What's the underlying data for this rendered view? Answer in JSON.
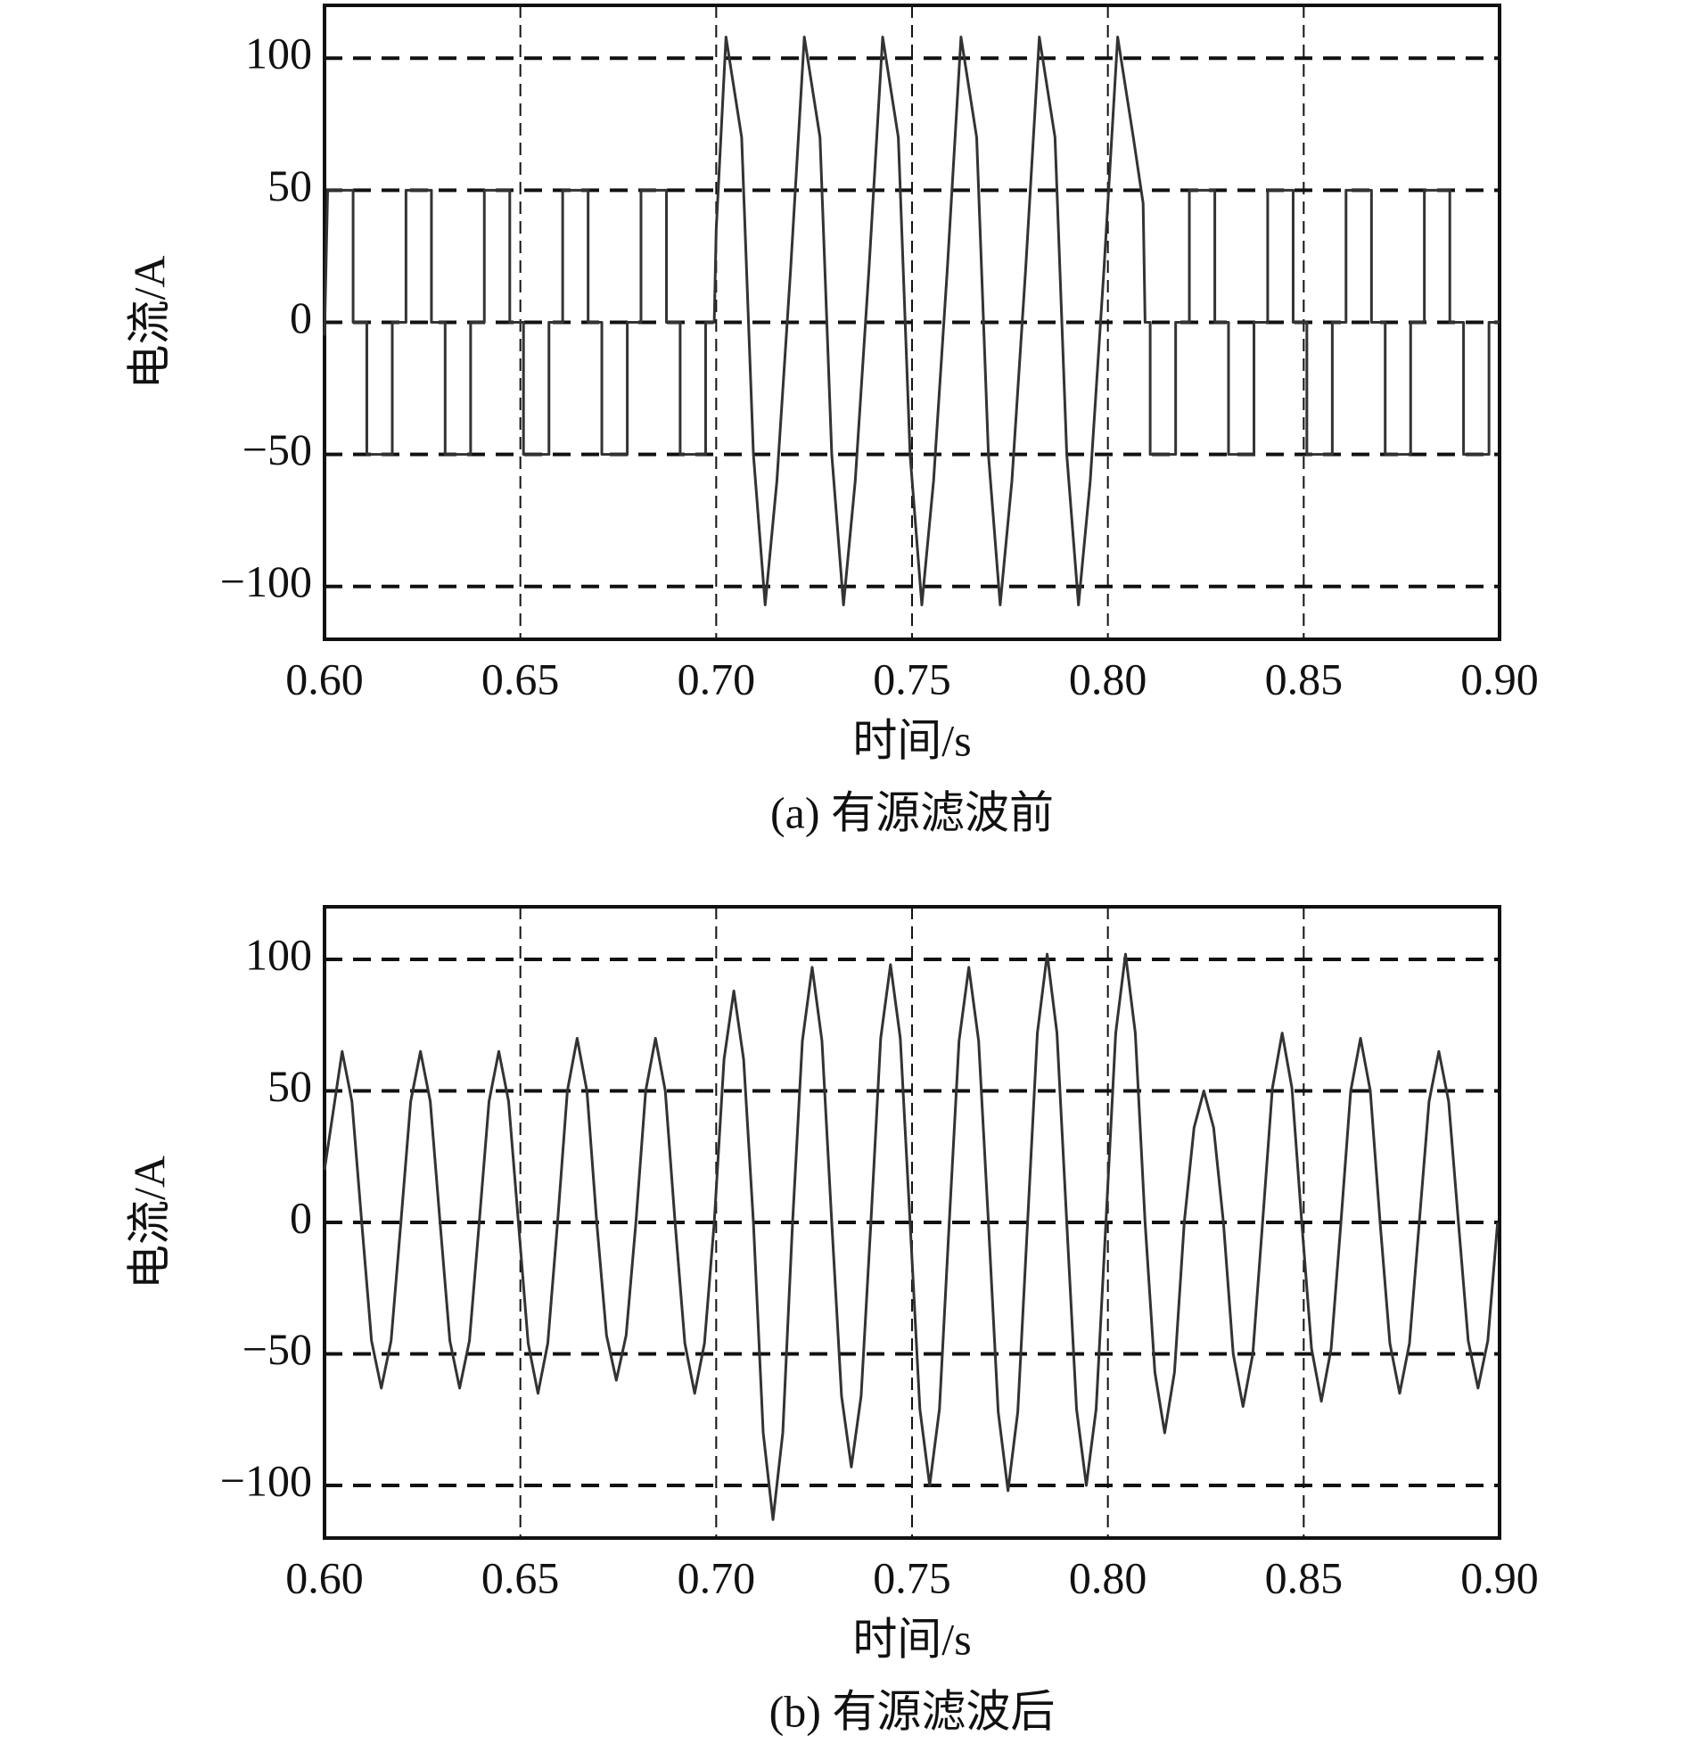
{
  "chart_data": [
    {
      "type": "line",
      "xlabel": "时间/s",
      "ylabel": "电流/A",
      "caption": "(a) 有源滤波前",
      "color": "#333333",
      "grid": true,
      "xlim": [
        0.6,
        0.9
      ],
      "ylim": [
        -120,
        120
      ],
      "xticks": [
        {
          "value": 0.6,
          "label": "0.60"
        },
        {
          "value": 0.65,
          "label": "0.65"
        },
        {
          "value": 0.7,
          "label": "0.70"
        },
        {
          "value": 0.75,
          "label": "0.75"
        },
        {
          "value": 0.8,
          "label": "0.80"
        },
        {
          "value": 0.85,
          "label": "0.85"
        },
        {
          "value": 0.9,
          "label": "0.90"
        }
      ],
      "yticks": [
        {
          "value": -100,
          "label": "−100"
        },
        {
          "value": -50,
          "label": "−50"
        },
        0,
        50,
        100
      ],
      "x": [
        0.6,
        0.6008,
        0.6073,
        0.6073,
        0.6108,
        0.6108,
        0.6173,
        0.6173,
        0.6208,
        0.6208,
        0.6273,
        0.6273,
        0.6308,
        0.6308,
        0.6373,
        0.6373,
        0.6408,
        0.6408,
        0.6473,
        0.6473,
        0.6508,
        0.6508,
        0.6573,
        0.6573,
        0.6608,
        0.6608,
        0.6673,
        0.6673,
        0.6708,
        0.6708,
        0.6773,
        0.6773,
        0.6808,
        0.6808,
        0.6873,
        0.6873,
        0.6908,
        0.6908,
        0.6973,
        0.6973,
        0.6995,
        0.7,
        0.7025,
        0.7065,
        0.7095,
        0.7125,
        0.7155,
        0.719,
        0.7225,
        0.7265,
        0.7295,
        0.7325,
        0.7355,
        0.739,
        0.7425,
        0.7465,
        0.7495,
        0.7525,
        0.7555,
        0.759,
        0.7625,
        0.7665,
        0.7695,
        0.7725,
        0.7755,
        0.779,
        0.7825,
        0.7865,
        0.7895,
        0.7925,
        0.7955,
        0.799,
        0.8025,
        0.8065,
        0.809,
        0.8095,
        0.8108,
        0.8108,
        0.8173,
        0.8173,
        0.8208,
        0.8208,
        0.8273,
        0.8273,
        0.8308,
        0.8308,
        0.8373,
        0.8373,
        0.8408,
        0.8408,
        0.8473,
        0.8473,
        0.8508,
        0.8508,
        0.8573,
        0.8573,
        0.8608,
        0.8608,
        0.8673,
        0.8673,
        0.8708,
        0.8708,
        0.8773,
        0.8773,
        0.8808,
        0.8808,
        0.8873,
        0.8873,
        0.8908,
        0.8908,
        0.8973,
        0.8973,
        0.9
      ],
      "values": [
        -5,
        50,
        50,
        0,
        0,
        -50,
        -50,
        0,
        0,
        50,
        50,
        0,
        0,
        -50,
        -50,
        0,
        0,
        50,
        50,
        0,
        0,
        -50,
        -50,
        0,
        0,
        50,
        50,
        0,
        0,
        -50,
        -50,
        0,
        0,
        50,
        50,
        0,
        0,
        -50,
        -50,
        0,
        0,
        35,
        108,
        70,
        -50,
        -107,
        -60,
        20,
        108,
        70,
        -50,
        -107,
        -60,
        20,
        108,
        70,
        -50,
        -107,
        -60,
        20,
        108,
        70,
        -50,
        -107,
        -60,
        20,
        108,
        70,
        -50,
        -107,
        -60,
        20,
        108,
        70,
        45,
        0,
        0,
        -50,
        -50,
        0,
        0,
        50,
        50,
        0,
        0,
        -50,
        -50,
        0,
        0,
        50,
        50,
        0,
        0,
        -50,
        -50,
        0,
        0,
        50,
        50,
        0,
        0,
        -50,
        -50,
        0,
        0,
        50,
        50,
        0,
        0,
        -50,
        -50,
        0,
        0
      ]
    },
    {
      "type": "line",
      "xlabel": "时间/s",
      "ylabel": "电流/A",
      "caption": "(b) 有源滤波后",
      "color": "#333333",
      "grid": true,
      "xlim": [
        0.6,
        0.9
      ],
      "ylim": [
        -120,
        120
      ],
      "xticks": [
        {
          "value": 0.6,
          "label": "0.60"
        },
        {
          "value": 0.65,
          "label": "0.65"
        },
        {
          "value": 0.7,
          "label": "0.70"
        },
        {
          "value": 0.75,
          "label": "0.75"
        },
        {
          "value": 0.8,
          "label": "0.80"
        },
        {
          "value": 0.85,
          "label": "0.85"
        },
        {
          "value": 0.9,
          "label": "0.90"
        }
      ],
      "yticks": [
        {
          "value": -100,
          "label": "−100"
        },
        {
          "value": -50,
          "label": "−50"
        },
        0,
        50,
        100
      ],
      "x": [
        0.6,
        0.6045,
        0.607,
        0.6095,
        0.612,
        0.6145,
        0.617,
        0.6195,
        0.622,
        0.6245,
        0.627,
        0.6295,
        0.632,
        0.6345,
        0.637,
        0.6395,
        0.642,
        0.6445,
        0.647,
        0.6495,
        0.652,
        0.6545,
        0.657,
        0.6595,
        0.662,
        0.6645,
        0.667,
        0.6695,
        0.672,
        0.6745,
        0.677,
        0.6795,
        0.682,
        0.6845,
        0.687,
        0.6895,
        0.692,
        0.6945,
        0.697,
        0.6995,
        0.702,
        0.7045,
        0.707,
        0.7095,
        0.712,
        0.7145,
        0.717,
        0.7195,
        0.722,
        0.7245,
        0.727,
        0.7295,
        0.732,
        0.7345,
        0.737,
        0.7395,
        0.742,
        0.7445,
        0.747,
        0.7495,
        0.752,
        0.7545,
        0.757,
        0.7595,
        0.762,
        0.7645,
        0.767,
        0.7695,
        0.772,
        0.7745,
        0.777,
        0.7795,
        0.782,
        0.7845,
        0.787,
        0.7895,
        0.792,
        0.7945,
        0.797,
        0.7995,
        0.802,
        0.8045,
        0.807,
        0.8095,
        0.812,
        0.8145,
        0.817,
        0.8195,
        0.822,
        0.8245,
        0.827,
        0.8295,
        0.832,
        0.8345,
        0.837,
        0.8395,
        0.842,
        0.8445,
        0.847,
        0.8495,
        0.852,
        0.8545,
        0.857,
        0.8595,
        0.862,
        0.8645,
        0.867,
        0.8695,
        0.872,
        0.8745,
        0.877,
        0.8795,
        0.882,
        0.8845,
        0.887,
        0.8895,
        0.892,
        0.8945,
        0.897,
        0.8995
      ],
      "values": [
        20,
        65,
        46,
        0,
        -45,
        -63,
        -45,
        0,
        46,
        65,
        46,
        0,
        -45,
        -63,
        -45,
        0,
        46,
        65,
        46,
        0,
        -46,
        -65,
        -46,
        0,
        50,
        70,
        50,
        0,
        -43,
        -60,
        -43,
        0,
        50,
        70,
        50,
        0,
        -46,
        -65,
        -46,
        0,
        62,
        88,
        62,
        0,
        -80,
        -113,
        -80,
        0,
        69,
        97,
        69,
        0,
        -66,
        -93,
        -66,
        0,
        70,
        98,
        70,
        0,
        -71,
        -100,
        -71,
        0,
        69,
        97,
        69,
        0,
        -72,
        -102,
        -72,
        0,
        72,
        102,
        72,
        0,
        -71,
        -100,
        -71,
        0,
        72,
        102,
        72,
        0,
        -57,
        -80,
        -57,
        0,
        36,
        50,
        36,
        0,
        -50,
        -70,
        -50,
        0,
        51,
        72,
        51,
        0,
        -48,
        -68,
        -48,
        0,
        50,
        70,
        50,
        0,
        -46,
        -65,
        -46,
        0,
        46,
        65,
        46,
        0,
        -45,
        -63,
        -45,
        0
      ]
    }
  ]
}
